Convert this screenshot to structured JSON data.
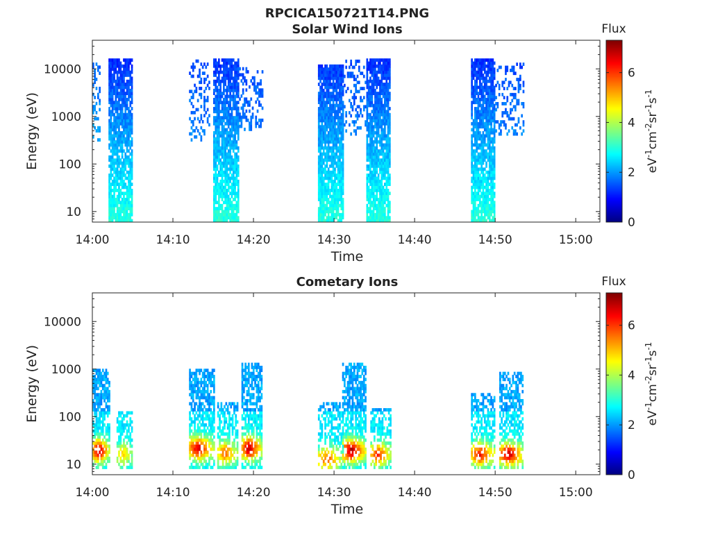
{
  "figure": {
    "title": "RPCICA150721T14.PNG"
  },
  "colorbar": {
    "label": "Flux",
    "units_html": [
      "eV",
      "-1",
      "cm",
      "-2",
      "sr",
      "-1",
      "s",
      "-1"
    ],
    "min": 0,
    "max": 7.3,
    "ticks": [
      0,
      2,
      4,
      6
    ],
    "colormap": "jet",
    "colormap_stops": [
      "#00007f",
      "#0000ff",
      "#007fff",
      "#00ffff",
      "#7fff7f",
      "#ffff00",
      "#ff7f00",
      "#ff0000",
      "#7f0000"
    ]
  },
  "chart_data": [
    {
      "type": "heatmap",
      "title": "Solar Wind Ions",
      "xlabel": "Time",
      "ylabel": "Energy (eV)",
      "yscale": "log",
      "ylim": [
        6,
        40000
      ],
      "xlim_minutes": [
        0,
        63
      ],
      "xticks": [
        "14:00",
        "14:10",
        "14:20",
        "14:30",
        "14:40",
        "14:50",
        "15:00"
      ],
      "yticks": [
        "10",
        "100",
        "1000",
        "10000"
      ],
      "bursts": [
        {
          "t_start": "14:00",
          "t_end": "14:01",
          "e_min": 300,
          "e_max": 12000,
          "flux_min": 1.5,
          "flux_max": 2.6,
          "density": 0.35
        },
        {
          "t_start": "14:02",
          "t_end": "14:05",
          "e_min": 6,
          "e_max": 15000,
          "flux_min": 1.0,
          "flux_max": 3.0,
          "density": 0.85
        },
        {
          "t_start": "14:12",
          "t_end": "14:14.5",
          "e_min": 300,
          "e_max": 15000,
          "flux_min": 1.3,
          "flux_max": 2.3,
          "density": 0.3
        },
        {
          "t_start": "14:15",
          "t_end": "14:18",
          "e_min": 6,
          "e_max": 15000,
          "flux_min": 1.0,
          "flux_max": 3.0,
          "density": 0.85
        },
        {
          "t_start": "14:18",
          "t_end": "14:21",
          "e_min": 500,
          "e_max": 10000,
          "flux_min": 1.3,
          "flux_max": 2.3,
          "density": 0.3
        },
        {
          "t_start": "14:28",
          "t_end": "14:31",
          "e_min": 6,
          "e_max": 12000,
          "flux_min": 1.0,
          "flux_max": 3.0,
          "density": 0.9
        },
        {
          "t_start": "14:31",
          "t_end": "14:34",
          "e_min": 400,
          "e_max": 15000,
          "flux_min": 1.3,
          "flux_max": 2.3,
          "density": 0.25
        },
        {
          "t_start": "14:34",
          "t_end": "14:37",
          "e_min": 6,
          "e_max": 15000,
          "flux_min": 1.0,
          "flux_max": 3.0,
          "density": 0.85
        },
        {
          "t_start": "14:47",
          "t_end": "14:50",
          "e_min": 6,
          "e_max": 15000,
          "flux_min": 1.0,
          "flux_max": 3.0,
          "density": 0.85
        },
        {
          "t_start": "14:50",
          "t_end": "14:53.5",
          "e_min": 400,
          "e_max": 12000,
          "flux_min": 1.3,
          "flux_max": 2.3,
          "density": 0.3
        }
      ]
    },
    {
      "type": "heatmap",
      "title": "Cometary Ions",
      "xlabel": "Time",
      "ylabel": "Energy (eV)",
      "yscale": "log",
      "ylim": [
        6,
        40000
      ],
      "xlim_minutes": [
        0,
        63
      ],
      "xticks": [
        "14:00",
        "14:10",
        "14:20",
        "14:30",
        "14:40",
        "14:50",
        "15:00"
      ],
      "yticks": [
        "10",
        "100",
        "1000",
        "10000"
      ],
      "bursts": [
        {
          "t_start": "14:00",
          "t_end": "14:02",
          "e_min": 8,
          "e_max": 1000,
          "peak_e": 18,
          "flux_peak": 7.0,
          "density": 0.7
        },
        {
          "t_start": "14:03",
          "t_end": "14:05",
          "e_min": 8,
          "e_max": 120,
          "peak_e": 15,
          "flux_peak": 5.0,
          "density": 0.6
        },
        {
          "t_start": "14:12",
          "t_end": "14:15",
          "e_min": 8,
          "e_max": 1000,
          "peak_e": 20,
          "flux_peak": 6.8,
          "density": 0.7
        },
        {
          "t_start": "14:15.5",
          "t_end": "14:18",
          "e_min": 8,
          "e_max": 200,
          "peak_e": 16,
          "flux_peak": 5.8,
          "density": 0.6
        },
        {
          "t_start": "14:18.5",
          "t_end": "14:21",
          "e_min": 8,
          "e_max": 1300,
          "peak_e": 20,
          "flux_peak": 7.0,
          "density": 0.7
        },
        {
          "t_start": "14:28",
          "t_end": "14:31",
          "e_min": 8,
          "e_max": 200,
          "peak_e": 12,
          "flux_peak": 5.8,
          "density": 0.5
        },
        {
          "t_start": "14:31",
          "t_end": "14:34",
          "e_min": 8,
          "e_max": 1200,
          "peak_e": 18,
          "flux_peak": 7.0,
          "density": 0.7
        },
        {
          "t_start": "14:34.5",
          "t_end": "14:37",
          "e_min": 8,
          "e_max": 150,
          "peak_e": 15,
          "flux_peak": 6.2,
          "density": 0.55
        },
        {
          "t_start": "14:47",
          "t_end": "14:50",
          "e_min": 8,
          "e_max": 300,
          "peak_e": 15,
          "flux_peak": 6.5,
          "density": 0.6
        },
        {
          "t_start": "14:50.5",
          "t_end": "14:53.5",
          "e_min": 8,
          "e_max": 800,
          "peak_e": 15,
          "flux_peak": 7.0,
          "density": 0.65
        }
      ]
    }
  ]
}
